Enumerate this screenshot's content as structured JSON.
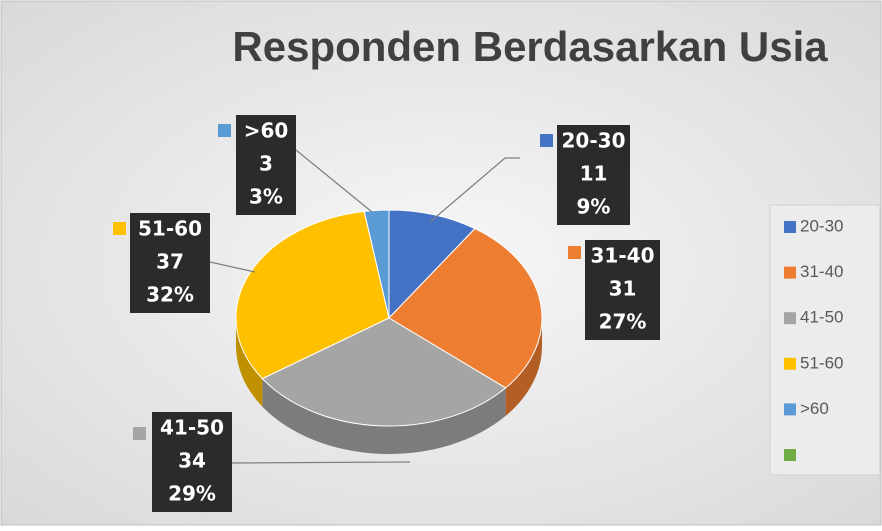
{
  "chart_data": {
    "type": "pie",
    "title": "Responden Berdasarkan Usia",
    "categories": [
      "20-30",
      "31-40",
      "41-50",
      "51-60",
      ">60",
      null
    ],
    "values": [
      11,
      31,
      34,
      37,
      3,
      null
    ],
    "percentages": [
      9,
      27,
      29,
      32,
      3,
      null
    ],
    "percentage_labels": [
      "9%",
      "27%",
      "29%",
      "32%",
      "3%",
      null
    ],
    "colors": [
      "#4472c4",
      "#ed7d31",
      "#a5a5a5",
      "#ffc000",
      "#5b9bd5",
      "#70ad47"
    ],
    "legend": "right",
    "three_d": true
  }
}
